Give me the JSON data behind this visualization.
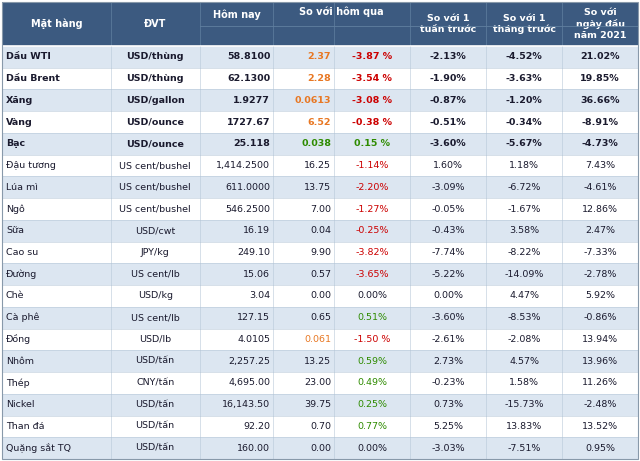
{
  "rows": [
    [
      "Dầu WTI",
      "USD/thùng",
      "58.8100",
      "2.37",
      "-3.87 %",
      "-2.13%",
      "-4.52%",
      "21.02%"
    ],
    [
      "Dầu Brent",
      "USD/thùng",
      "62.1300",
      "2.28",
      "-3.54 %",
      "-1.90%",
      "-3.63%",
      "19.85%"
    ],
    [
      "Xăng",
      "USD/gallon",
      "1.9277",
      "0.0613",
      "-3.08 %",
      "-0.87%",
      "-1.20%",
      "36.66%"
    ],
    [
      "Vàng",
      "USD/ounce",
      "1727.67",
      "6.52",
      "-0.38 %",
      "-0.51%",
      "-0.34%",
      "-8.91%"
    ],
    [
      "Bạc",
      "USD/ounce",
      "25.118",
      "0.038",
      "0.15 %",
      "-3.60%",
      "-5.67%",
      "-4.73%"
    ],
    [
      "Đậu tương",
      "US cent/bushel",
      "1,414.2500",
      "16.25",
      "-1.14%",
      "1.60%",
      "1.18%",
      "7.43%"
    ],
    [
      "Lúa mì",
      "US cent/bushel",
      "611.0000",
      "13.75",
      "-2.20%",
      "-3.09%",
      "-6.72%",
      "-4.61%"
    ],
    [
      "Ngô",
      "US cent/bushel",
      "546.2500",
      "7.00",
      "-1.27%",
      "-0.05%",
      "-1.67%",
      "12.86%"
    ],
    [
      "Sữa",
      "USD/cwt",
      "16.19",
      "0.04",
      "-0.25%",
      "-0.43%",
      "3.58%",
      "2.47%"
    ],
    [
      "Cao su",
      "JPY/kg",
      "249.10",
      "9.90",
      "-3.82%",
      "-7.74%",
      "-8.22%",
      "-7.33%"
    ],
    [
      "Đường",
      "US cent/lb",
      "15.06",
      "0.57",
      "-3.65%",
      "-5.22%",
      "-14.09%",
      "-2.78%"
    ],
    [
      "Chè",
      "USD/kg",
      "3.04",
      "0.00",
      "0.00%",
      "0.00%",
      "4.47%",
      "5.92%"
    ],
    [
      "Cà phê",
      "US cent/lb",
      "127.15",
      "0.65",
      "0.51%",
      "-3.60%",
      "-8.53%",
      "-0.86%"
    ],
    [
      "Đồng",
      "USD/lb",
      "4.0105",
      "0.061",
      "-1.50 %",
      "-2.61%",
      "-2.08%",
      "13.94%"
    ],
    [
      "Nhôm",
      "USD/tấn",
      "2,257.25",
      "13.25",
      "0.59%",
      "2.73%",
      "4.57%",
      "13.96%"
    ],
    [
      "Thép",
      "CNY/tấn",
      "4,695.00",
      "23.00",
      "0.49%",
      "-0.23%",
      "1.58%",
      "11.26%"
    ],
    [
      "Nickel",
      "USD/tấn",
      "16,143.50",
      "39.75",
      "0.25%",
      "0.73%",
      "-15.73%",
      "-2.48%"
    ],
    [
      "Than đá",
      "USD/tấn",
      "92.20",
      "0.70",
      "0.77%",
      "5.25%",
      "13.83%",
      "13.52%"
    ],
    [
      "Quặng sắt TQ",
      "USD/tấn",
      "160.00",
      "0.00",
      "0.00%",
      "-3.03%",
      "-7.51%",
      "0.95%"
    ]
  ],
  "col3_orange_rows": [
    0,
    1,
    2,
    3,
    13
  ],
  "col3_green_rows": [
    4
  ],
  "col4_red_rows": [
    0,
    1,
    2,
    3,
    5,
    6,
    7,
    8,
    9,
    10,
    13
  ],
  "col4_green_rows": [
    4,
    12,
    14,
    15,
    16,
    17
  ],
  "bold_rows": [
    0,
    1,
    2,
    3,
    4
  ],
  "header_bg": "#3c5a80",
  "header_text": "#ffffff",
  "row_bg_light": "#dce6f1",
  "row_bg_white": "#ffffff",
  "separator_color": "#b8c8d8",
  "text_color": "#1a1a2e",
  "red_color": "#cc0000",
  "orange_color": "#e87722",
  "green_color": "#2e8b00"
}
